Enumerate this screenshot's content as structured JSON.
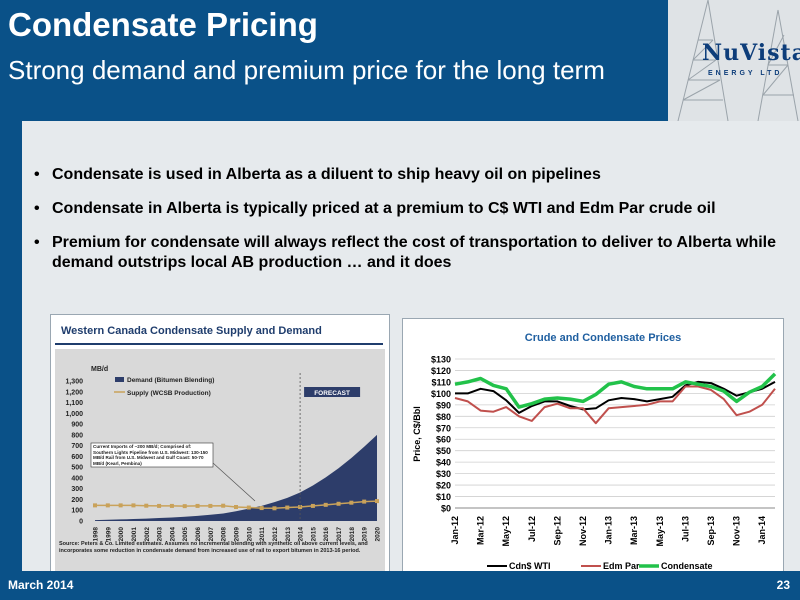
{
  "header": {
    "title": "Condensate Pricing",
    "subtitle": "Strong demand and premium price for the long term"
  },
  "logo": {
    "name": "NuVista",
    "sub": "ENERGY LTD"
  },
  "bullets": [
    "Condensate is used in Alberta as a diluent to ship heavy oil on pipelines",
    "Condensate in Alberta is typically priced at a premium to C$ WTI and Edm Par crude oil",
    "Premium for condensate will always reflect the cost of transportation to deliver to Alberta while demand outstrips local AB production … and it does"
  ],
  "footer": {
    "date": "March 2014",
    "page": "23"
  },
  "colors": {
    "brand_blue": "#0a5188",
    "demand_area": "#2d3d6a",
    "supply_line": "#c9a25a",
    "wti": "#000000",
    "edm": "#c0504d",
    "condensate": "#22c24a"
  },
  "chart_data": [
    {
      "type": "area",
      "title": "Western Canada Condensate Supply and Demand",
      "ylabel": "MB/d",
      "ylim": [
        0,
        1300
      ],
      "yticks": [
        "0",
        "100",
        "200",
        "300",
        "400",
        "500",
        "600",
        "700",
        "800",
        "900",
        "1,000",
        "1,100",
        "1,200",
        "1,300"
      ],
      "categories": [
        "1998",
        "1999",
        "2000",
        "2001",
        "2002",
        "2003",
        "2004",
        "2005",
        "2006",
        "2007",
        "2008",
        "2009",
        "2010",
        "2011",
        "2012",
        "2013",
        "2014",
        "2015",
        "2016",
        "2017",
        "2018",
        "2019",
        "2020"
      ],
      "series": [
        {
          "name": "Demand (Bitumen Blending)",
          "values": [
            8,
            12,
            15,
            18,
            22,
            28,
            32,
            40,
            48,
            58,
            70,
            90,
            115,
            140,
            175,
            215,
            265,
            330,
            405,
            490,
            585,
            690,
            800
          ]
        },
        {
          "name": "Supply (WCSB Production)",
          "values": [
            145,
            145,
            145,
            145,
            142,
            140,
            140,
            138,
            140,
            140,
            142,
            130,
            125,
            120,
            118,
            125,
            130,
            140,
            150,
            160,
            170,
            180,
            185
          ]
        }
      ],
      "forecast_label": "FORECAST",
      "annotation": "Current Imports of ~200 MB/d; Comprised of: Southern Lights Pipeline from U.S. Midwest: 130-150 MB/d Rail from U.S. Midwest and Gulf Coast: 50-70 MB/d (Kearl, Pembina)",
      "source": "Source: Peters & Co. Limited estimates. Assumes no incremental blending with synthetic oil above current levels, and incorporates some reduction in condensate demand from increased use of rail to export bitumen in 2013-16 period.",
      "legend": "top-left"
    },
    {
      "type": "line",
      "title": "Crude and Condensate Prices",
      "ylabel": "Price, C$/Bbl",
      "ylim": [
        0,
        130
      ],
      "yticks": [
        "$0",
        "$10",
        "$20",
        "$30",
        "$40",
        "$50",
        "$60",
        "$70",
        "$80",
        "$90",
        "$100",
        "$110",
        "$120",
        "$130"
      ],
      "categories": [
        "Jan-12",
        "Feb-12",
        "Mar-12",
        "Apr-12",
        "May-12",
        "Jun-12",
        "Jul-12",
        "Aug-12",
        "Sep-12",
        "Oct-12",
        "Nov-12",
        "Dec-12",
        "Jan-13",
        "Feb-13",
        "Mar-13",
        "Apr-13",
        "May-13",
        "Jun-13",
        "Jul-13",
        "Aug-13",
        "Sep-13",
        "Oct-13",
        "Nov-13",
        "Dec-13",
        "Jan-14",
        "Feb-14"
      ],
      "xtick_labels": [
        "Jan-12",
        "Mar-12",
        "May-12",
        "Jul-12",
        "Sep-12",
        "Nov-12",
        "Jan-13",
        "Mar-13",
        "May-13",
        "Jul-13",
        "Sep-13",
        "Nov-13",
        "Jan-14"
      ],
      "series": [
        {
          "name": "Cdn$ WTI",
          "values": [
            100,
            100,
            104,
            102,
            94,
            83,
            89,
            93,
            93,
            89,
            86,
            87,
            94,
            96,
            95,
            93,
            95,
            97,
            107,
            110,
            109,
            104,
            98,
            101,
            104,
            110
          ]
        },
        {
          "name": "Edm Par",
          "values": [
            96,
            93,
            85,
            84,
            88,
            80,
            76,
            88,
            91,
            87,
            87,
            74,
            87,
            88,
            89,
            90,
            93,
            93,
            106,
            106,
            103,
            95,
            81,
            84,
            90,
            104
          ]
        },
        {
          "name": "Condensate",
          "values": [
            108,
            110,
            113,
            107,
            104,
            88,
            91,
            95,
            96,
            95,
            93,
            99,
            108,
            110,
            106,
            104,
            104,
            104,
            110,
            108,
            106,
            102,
            93,
            101,
            106,
            117
          ]
        }
      ],
      "legend": "bottom"
    }
  ]
}
